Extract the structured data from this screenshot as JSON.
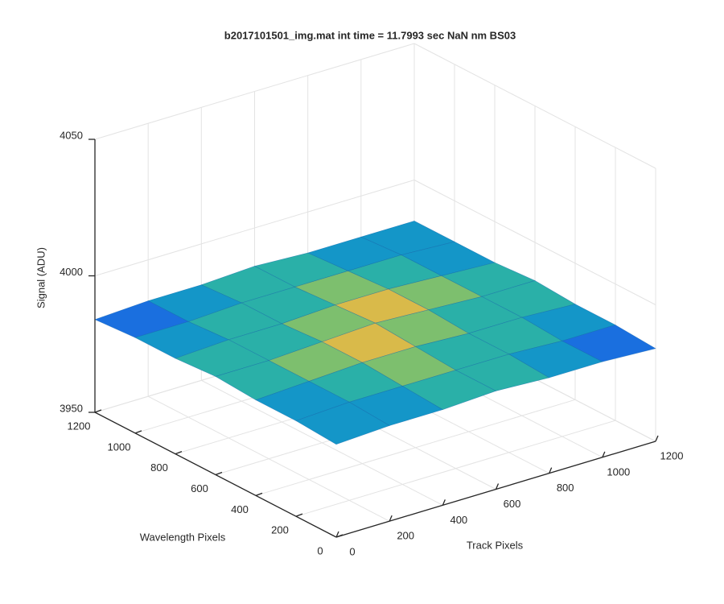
{
  "chart_data": {
    "type": "surface3d",
    "title": "b2017101501_img.mat int time = 11.7993 sec  NaN nm BS03",
    "xlabel": "Track Pixels",
    "ylabel": "Wavelength Pixels",
    "zlabel": "Signal (ADU)",
    "x": [
      0,
      200,
      400,
      600,
      800,
      1000,
      1200
    ],
    "y": [
      0,
      200,
      400,
      600,
      800,
      1000,
      1200
    ],
    "z": [
      [
        3984,
        3985,
        3985,
        3986,
        3985,
        3985,
        3984
      ],
      [
        3985,
        3986,
        3986,
        3986,
        3986,
        3985,
        3985
      ],
      [
        3985,
        3986,
        3987,
        3987,
        3986,
        3986,
        3985
      ],
      [
        3986,
        3986,
        3987,
        3988,
        3987,
        3986,
        3986
      ],
      [
        3985,
        3986,
        3986,
        3987,
        3987,
        3986,
        3985
      ],
      [
        3985,
        3985,
        3986,
        3986,
        3986,
        3986,
        3985
      ],
      [
        3984,
        3985,
        3985,
        3986,
        3985,
        3985,
        3985
      ]
    ],
    "colormap": [
      "#1a6fdf",
      "#1496c8",
      "#2ab0a8",
      "#7dbf6e",
      "#d9ba4a"
    ],
    "xlim": [
      0,
      1200
    ],
    "ylim": [
      0,
      1200
    ],
    "zlim": [
      3950,
      4050
    ],
    "xticks": [
      0,
      200,
      400,
      600,
      800,
      1000,
      1200
    ],
    "yticks": [
      0,
      200,
      400,
      600,
      800,
      1000,
      1200
    ],
    "zticks": [
      3950,
      4000,
      4050
    ],
    "grid": true
  }
}
